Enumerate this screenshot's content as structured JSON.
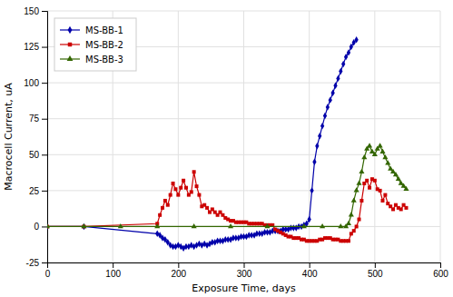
{
  "chart_data": {
    "type": "line",
    "xlabel": "Exposure Time, days",
    "ylabel": "Macrocell Current, uA",
    "xlim": [
      0,
      600
    ],
    "ylim": [
      -25,
      150
    ],
    "xticks": [
      0,
      100,
      200,
      300,
      400,
      500,
      600
    ],
    "yticks": [
      -25,
      0,
      25,
      50,
      75,
      100,
      125,
      150
    ],
    "grid": true,
    "legend": "upper left",
    "series": [
      {
        "name": "MS-BB-1",
        "color": "#0000aa",
        "marker": "diamond",
        "x": [
          0,
          56,
          168,
          172,
          176,
          180,
          184,
          188,
          192,
          196,
          200,
          204,
          208,
          212,
          216,
          220,
          224,
          228,
          232,
          236,
          240,
          244,
          248,
          252,
          256,
          260,
          264,
          268,
          272,
          276,
          280,
          284,
          288,
          292,
          296,
          300,
          304,
          308,
          312,
          316,
          320,
          324,
          328,
          332,
          336,
          340,
          344,
          348,
          352,
          356,
          360,
          364,
          368,
          372,
          376,
          380,
          384,
          388,
          392,
          396,
          400,
          404,
          408,
          412,
          416,
          420,
          424,
          428,
          432,
          436,
          440,
          444,
          448,
          452,
          456,
          460,
          464,
          468,
          472
        ],
        "values": [
          0,
          0,
          -5,
          -6,
          -8,
          -9,
          -11,
          -13,
          -14,
          -14,
          -13,
          -14,
          -15,
          -14,
          -14,
          -13,
          -14,
          -13,
          -12,
          -13,
          -12,
          -13,
          -12,
          -11,
          -11,
          -10,
          -10,
          -10,
          -9,
          -9,
          -9,
          -8,
          -8,
          -8,
          -7,
          -7,
          -7,
          -6,
          -6,
          -6,
          -5,
          -5,
          -5,
          -4,
          -4,
          -4,
          -3,
          -3,
          -3,
          -3,
          -2,
          -2,
          -2,
          -1,
          -1,
          -1,
          0,
          0,
          1,
          2,
          5,
          25,
          45,
          56,
          63,
          70,
          77,
          83,
          88,
          93,
          98,
          103,
          108,
          113,
          118,
          121,
          125,
          128,
          130
        ]
      },
      {
        "name": "MS-BB-2",
        "color": "#cc0000",
        "marker": "square",
        "x": [
          0,
          56,
          168,
          172,
          176,
          180,
          184,
          188,
          192,
          196,
          200,
          204,
          208,
          212,
          216,
          220,
          224,
          228,
          232,
          236,
          240,
          244,
          248,
          252,
          256,
          260,
          264,
          268,
          272,
          276,
          280,
          284,
          288,
          292,
          296,
          300,
          304,
          308,
          312,
          316,
          320,
          324,
          328,
          332,
          336,
          340,
          344,
          348,
          352,
          356,
          360,
          364,
          368,
          372,
          376,
          380,
          384,
          388,
          392,
          396,
          400,
          404,
          408,
          412,
          416,
          420,
          424,
          428,
          432,
          436,
          440,
          444,
          448,
          452,
          456,
          460,
          464,
          468,
          472,
          476,
          480,
          484,
          488,
          492,
          496,
          500,
          504,
          508,
          512,
          516,
          520,
          524,
          528,
          532,
          536,
          540,
          544,
          548
        ],
        "values": [
          0,
          0,
          2,
          8,
          13,
          18,
          15,
          22,
          30,
          26,
          22,
          27,
          32,
          27,
          22,
          24,
          38,
          28,
          22,
          14,
          15,
          13,
          10,
          12,
          10,
          8,
          10,
          8,
          6,
          5,
          4,
          4,
          3,
          3,
          3,
          3,
          3,
          2,
          2,
          2,
          2,
          2,
          2,
          1,
          1,
          1,
          1,
          -2,
          -3,
          -4,
          -5,
          -6,
          -7,
          -7,
          -8,
          -8,
          -8,
          -9,
          -9,
          -10,
          -10,
          -10,
          -10,
          -10,
          -9,
          -9,
          -8,
          -8,
          -8,
          -9,
          -9,
          -9,
          -10,
          -10,
          -10,
          -10,
          -5,
          -3,
          0,
          5,
          18,
          30,
          32,
          27,
          33,
          32,
          26,
          25,
          18,
          22,
          16,
          14,
          12,
          15,
          13,
          12,
          15,
          13
        ]
      },
      {
        "name": "MS-BB-3",
        "color": "#336600",
        "marker": "triangle",
        "x": [
          0,
          56,
          112,
          168,
          224,
          280,
          336,
          392,
          420,
          448,
          456,
          460,
          464,
          468,
          472,
          476,
          480,
          484,
          488,
          492,
          496,
          500,
          504,
          508,
          512,
          516,
          520,
          524,
          528,
          532,
          536,
          540,
          544,
          548
        ],
        "values": [
          0,
          0,
          0,
          0,
          0,
          0,
          0,
          0,
          0,
          0,
          0,
          2,
          8,
          18,
          25,
          30,
          38,
          48,
          54,
          56,
          52,
          50,
          54,
          56,
          52,
          48,
          44,
          40,
          38,
          36,
          33,
          30,
          28,
          26
        ]
      }
    ]
  }
}
